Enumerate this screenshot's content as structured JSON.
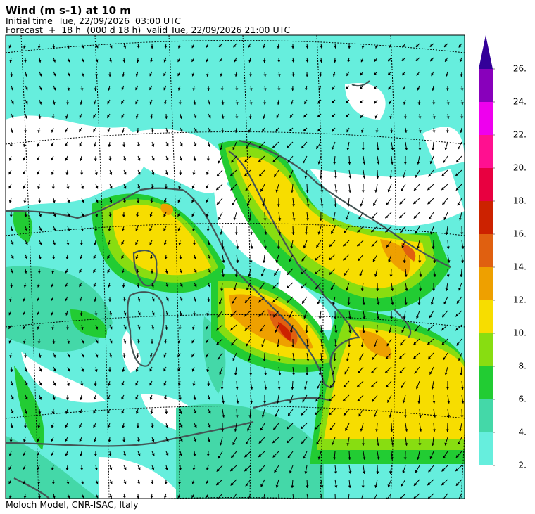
{
  "header": {
    "title": "Wind (m s-1) at 10 m",
    "initial_time": "Initial time  Tue, 22/09/2026  03:00 UTC",
    "forecast": "Forecast  +  18 h  (000 d 18 h)  valid Tue, 22/09/2026 21:00 UTC"
  },
  "colorbar": {
    "ticks": [
      {
        "value": 2,
        "label": "2."
      },
      {
        "value": 4,
        "label": "4."
      },
      {
        "value": 6,
        "label": "6."
      },
      {
        "value": 8,
        "label": "8."
      },
      {
        "value": 10,
        "label": "10."
      },
      {
        "value": 12,
        "label": "12."
      },
      {
        "value": 14,
        "label": "14."
      },
      {
        "value": 16,
        "label": "16."
      },
      {
        "value": 18,
        "label": "18."
      },
      {
        "value": 20,
        "label": "20."
      },
      {
        "value": 22,
        "label": "22."
      },
      {
        "value": 24,
        "label": "24."
      },
      {
        "value": 26,
        "label": "26."
      }
    ],
    "colors": [
      "#66eedd",
      "#44d8a8",
      "#22cc33",
      "#88dd11",
      "#f7dd00",
      "#eea000",
      "#e06010",
      "#cc2200",
      "#e80040",
      "#ff1090",
      "#ee00ee",
      "#8800bb"
    ],
    "extend_color": "#330099"
  },
  "footer": "Moloch Model, CNR-ISAC, Italy"
}
